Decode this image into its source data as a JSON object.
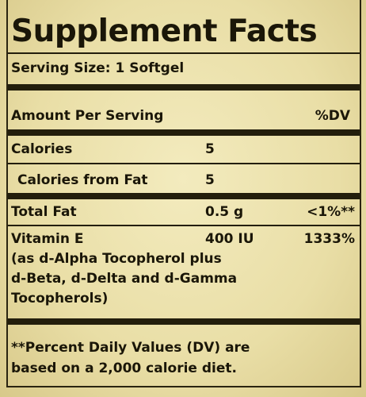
{
  "label": {
    "title": "Supplement Facts",
    "serving": "Serving Size: 1 Softgel",
    "header": {
      "amount": "Amount Per Serving",
      "dv": "%DV"
    },
    "rows": [
      {
        "name": "Calories",
        "amount": "5"
      },
      {
        "name": "Calories from Fat",
        "amount": "5"
      },
      {
        "name": "Total Fat",
        "amount": "0.5 g",
        "dv": "<1%**"
      },
      {
        "name": "Vitamin E",
        "amount": "400 IU",
        "dv": "1333%",
        "note": [
          "(as d-Alpha Tocopherol plus",
          "d-Beta, d-Delta and d-Gamma",
          "Tocopherols)"
        ]
      }
    ],
    "footnote": [
      "**Percent Daily Values (DV) are",
      "based on a 2,000 calorie diet."
    ]
  }
}
